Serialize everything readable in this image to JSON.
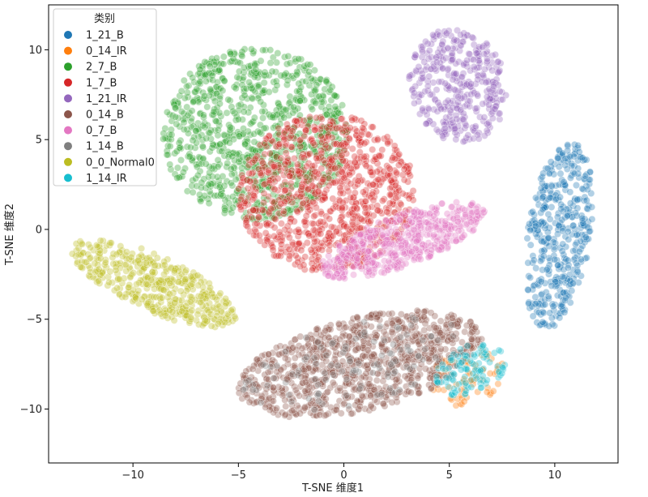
{
  "chart_data": {
    "type": "scatter",
    "title": "",
    "xlabel": "T-SNE 维度1",
    "ylabel": "T-SNE 维度2",
    "xlim": [
      -14,
      13
    ],
    "ylim": [
      -13,
      12.5
    ],
    "xticks": [
      -10,
      -5,
      0,
      5,
      10
    ],
    "yticks": [
      -10,
      -5,
      0,
      5,
      10
    ],
    "grid": false,
    "legend": {
      "title": "类别",
      "placement": "top-left"
    },
    "series": [
      {
        "name": "1_21_B",
        "color": "#1f77b4",
        "clusters": [
          {
            "cx": 10.2,
            "cy": -0.3,
            "rx": 1.5,
            "ry": 5.3,
            "n": 420,
            "rot": -0.12
          }
        ]
      },
      {
        "name": "0_14_IR",
        "color": "#ff7f0e",
        "clusters": [
          {
            "cx": 5.8,
            "cy": -8.2,
            "rx": 1.9,
            "ry": 1.5,
            "n": 70,
            "rot": 0.6
          }
        ]
      },
      {
        "name": "2_7_B",
        "color": "#2ca02c",
        "clusters": [
          {
            "cx": -4.2,
            "cy": 5.3,
            "rx": 4.4,
            "ry": 4.8,
            "n": 950,
            "rot": 0.0
          }
        ]
      },
      {
        "name": "1_7_B",
        "color": "#d62728",
        "clusters": [
          {
            "cx": -0.8,
            "cy": 2.0,
            "rx": 4.2,
            "ry": 4.4,
            "n": 900,
            "rot": 0.0
          }
        ]
      },
      {
        "name": "1_21_IR",
        "color": "#9467bd",
        "clusters": [
          {
            "cx": 5.4,
            "cy": 8.0,
            "rx": 2.3,
            "ry": 3.2,
            "n": 380,
            "rot": 0.15
          }
        ]
      },
      {
        "name": "0_14_B",
        "color": "#8c564b",
        "clusters": [
          {
            "cx": 0.8,
            "cy": -7.5,
            "rx": 6.0,
            "ry": 2.6,
            "n": 950,
            "rot": 0.28
          }
        ]
      },
      {
        "name": "0_7_B",
        "color": "#e377c2",
        "clusters": [
          {
            "cx": 2.8,
            "cy": -0.6,
            "rx": 4.2,
            "ry": 1.4,
            "n": 500,
            "rot": 0.42
          }
        ]
      },
      {
        "name": "1_14_B",
        "color": "#7f7f7f",
        "clusters": [
          {
            "cx": 0.5,
            "cy": -7.5,
            "rx": 5.5,
            "ry": 2.2,
            "n": 120,
            "rot": 0.28
          }
        ]
      },
      {
        "name": "0_0_Normal0",
        "color": "#bcbd22",
        "clusters": [
          {
            "cx": -9.0,
            "cy": -3.0,
            "rx": 4.4,
            "ry": 1.5,
            "n": 430,
            "rot": -0.5
          }
        ]
      },
      {
        "name": "1_14_IR",
        "color": "#17becf",
        "clusters": [
          {
            "cx": 6.0,
            "cy": -7.8,
            "rx": 1.8,
            "ry": 1.3,
            "n": 110,
            "rot": 0.6
          }
        ]
      }
    ]
  }
}
